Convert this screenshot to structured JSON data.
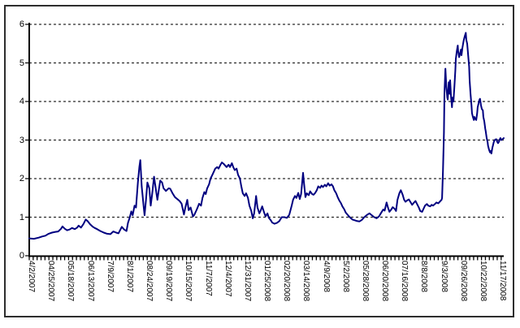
{
  "window": {
    "background_color": "#ffffff",
    "border_color": "#2e2e2e"
  },
  "chart_data": {
    "type": "line",
    "title": "",
    "xlabel": "",
    "ylabel": "",
    "ylim": [
      0,
      6
    ],
    "y_ticks": [
      "0",
      "1",
      "2",
      "3",
      "4",
      "5",
      "6"
    ],
    "x_tick_labels": [
      "4/2/2007",
      "04/25/2007",
      "05/18/2007",
      "06/13/2007",
      "7/9/2007",
      "8/1/2007",
      "08/24/2007",
      "09/19/2007",
      "10/15/2007",
      "11/7/2007",
      "12/4/2007",
      "12/31/2007",
      "01/25/2008",
      "02/20/2008",
      "03/14/2008",
      "4/9/2008",
      "5/2/2008",
      "05/28/2008",
      "06/20/2008",
      "07/16/2008",
      "8/8/2008",
      "9/3/2008",
      "09/26/2008",
      "10/22/2008",
      "11/17/2008"
    ],
    "grid": "horizontal-dashed",
    "legend": "none",
    "axis_color": "#000000",
    "gridline_color": "#2a2a2a",
    "series": [
      {
        "name": "spread-series",
        "color": "#000080",
        "points": [
          [
            0.0,
            0.45
          ],
          [
            0.01,
            0.44
          ],
          [
            0.02,
            0.47
          ],
          [
            0.027,
            0.5
          ],
          [
            0.034,
            0.52
          ],
          [
            0.041,
            0.57
          ],
          [
            0.048,
            0.6
          ],
          [
            0.055,
            0.62
          ],
          [
            0.061,
            0.63
          ],
          [
            0.067,
            0.7
          ],
          [
            0.07,
            0.76
          ],
          [
            0.075,
            0.7
          ],
          [
            0.08,
            0.66
          ],
          [
            0.085,
            0.68
          ],
          [
            0.09,
            0.72
          ],
          [
            0.096,
            0.69
          ],
          [
            0.101,
            0.73
          ],
          [
            0.104,
            0.78
          ],
          [
            0.109,
            0.73
          ],
          [
            0.114,
            0.82
          ],
          [
            0.119,
            0.94
          ],
          [
            0.123,
            0.9
          ],
          [
            0.128,
            0.82
          ],
          [
            0.133,
            0.76
          ],
          [
            0.138,
            0.72
          ],
          [
            0.143,
            0.69
          ],
          [
            0.15,
            0.64
          ],
          [
            0.157,
            0.6
          ],
          [
            0.164,
            0.57
          ],
          [
            0.171,
            0.56
          ],
          [
            0.177,
            0.63
          ],
          [
            0.183,
            0.6
          ],
          [
            0.188,
            0.58
          ],
          [
            0.195,
            0.75
          ],
          [
            0.2,
            0.68
          ],
          [
            0.205,
            0.64
          ],
          [
            0.208,
            0.85
          ],
          [
            0.212,
            1.0
          ],
          [
            0.215,
            1.15
          ],
          [
            0.218,
            1.05
          ],
          [
            0.222,
            1.3
          ],
          [
            0.225,
            1.25
          ],
          [
            0.229,
            1.9
          ],
          [
            0.232,
            2.3
          ],
          [
            0.234,
            2.48
          ],
          [
            0.237,
            1.8
          ],
          [
            0.241,
            1.3
          ],
          [
            0.243,
            1.05
          ],
          [
            0.246,
            1.45
          ],
          [
            0.249,
            1.9
          ],
          [
            0.253,
            1.75
          ],
          [
            0.256,
            1.3
          ],
          [
            0.259,
            1.6
          ],
          [
            0.263,
            2.05
          ],
          [
            0.266,
            1.8
          ],
          [
            0.27,
            1.45
          ],
          [
            0.273,
            1.7
          ],
          [
            0.276,
            1.95
          ],
          [
            0.28,
            1.9
          ],
          [
            0.283,
            1.75
          ],
          [
            0.288,
            1.68
          ],
          [
            0.294,
            1.75
          ],
          [
            0.297,
            1.74
          ],
          [
            0.302,
            1.62
          ],
          [
            0.307,
            1.52
          ],
          [
            0.312,
            1.47
          ],
          [
            0.317,
            1.42
          ],
          [
            0.321,
            1.35
          ],
          [
            0.326,
            1.07
          ],
          [
            0.329,
            1.25
          ],
          [
            0.333,
            1.45
          ],
          [
            0.336,
            1.18
          ],
          [
            0.34,
            1.25
          ],
          [
            0.345,
            1.02
          ],
          [
            0.348,
            1.06
          ],
          [
            0.353,
            1.2
          ],
          [
            0.358,
            1.35
          ],
          [
            0.362,
            1.3
          ],
          [
            0.365,
            1.5
          ],
          [
            0.369,
            1.65
          ],
          [
            0.372,
            1.6
          ],
          [
            0.375,
            1.75
          ],
          [
            0.379,
            1.85
          ],
          [
            0.382,
            2.0
          ],
          [
            0.386,
            2.1
          ],
          [
            0.389,
            2.18
          ],
          [
            0.392,
            2.26
          ],
          [
            0.396,
            2.3
          ],
          [
            0.399,
            2.26
          ],
          [
            0.403,
            2.36
          ],
          [
            0.406,
            2.42
          ],
          [
            0.41,
            2.38
          ],
          [
            0.413,
            2.34
          ],
          [
            0.416,
            2.3
          ],
          [
            0.42,
            2.36
          ],
          [
            0.423,
            2.3
          ],
          [
            0.427,
            2.4
          ],
          [
            0.43,
            2.3
          ],
          [
            0.433,
            2.22
          ],
          [
            0.437,
            2.26
          ],
          [
            0.44,
            2.1
          ],
          [
            0.444,
            2.0
          ],
          [
            0.447,
            1.8
          ],
          [
            0.45,
            1.62
          ],
          [
            0.454,
            1.55
          ],
          [
            0.457,
            1.62
          ],
          [
            0.461,
            1.5
          ],
          [
            0.464,
            1.3
          ],
          [
            0.468,
            1.16
          ],
          [
            0.471,
            0.97
          ],
          [
            0.474,
            1.1
          ],
          [
            0.478,
            1.55
          ],
          [
            0.481,
            1.25
          ],
          [
            0.485,
            1.1
          ],
          [
            0.488,
            1.18
          ],
          [
            0.491,
            1.28
          ],
          [
            0.495,
            1.12
          ],
          [
            0.498,
            1.02
          ],
          [
            0.502,
            1.1
          ],
          [
            0.505,
            0.98
          ],
          [
            0.509,
            0.92
          ],
          [
            0.512,
            0.86
          ],
          [
            0.517,
            0.83
          ],
          [
            0.522,
            0.85
          ],
          [
            0.527,
            0.9
          ],
          [
            0.532,
            1.0
          ],
          [
            0.538,
            1.0
          ],
          [
            0.543,
            0.98
          ],
          [
            0.548,
            1.06
          ],
          [
            0.553,
            1.3
          ],
          [
            0.556,
            1.45
          ],
          [
            0.56,
            1.55
          ],
          [
            0.563,
            1.5
          ],
          [
            0.567,
            1.63
          ],
          [
            0.57,
            1.47
          ],
          [
            0.573,
            1.6
          ],
          [
            0.577,
            2.15
          ],
          [
            0.579,
            1.9
          ],
          [
            0.582,
            1.52
          ],
          [
            0.585,
            1.62
          ],
          [
            0.589,
            1.57
          ],
          [
            0.592,
            1.67
          ],
          [
            0.596,
            1.6
          ],
          [
            0.599,
            1.58
          ],
          [
            0.602,
            1.62
          ],
          [
            0.606,
            1.7
          ],
          [
            0.609,
            1.8
          ],
          [
            0.613,
            1.76
          ],
          [
            0.616,
            1.82
          ],
          [
            0.619,
            1.78
          ],
          [
            0.623,
            1.84
          ],
          [
            0.626,
            1.8
          ],
          [
            0.63,
            1.88
          ],
          [
            0.633,
            1.82
          ],
          [
            0.637,
            1.85
          ],
          [
            0.64,
            1.8
          ],
          [
            0.643,
            1.7
          ],
          [
            0.647,
            1.62
          ],
          [
            0.65,
            1.52
          ],
          [
            0.653,
            1.44
          ],
          [
            0.657,
            1.36
          ],
          [
            0.66,
            1.28
          ],
          [
            0.664,
            1.2
          ],
          [
            0.667,
            1.12
          ],
          [
            0.671,
            1.06
          ],
          [
            0.674,
            1.02
          ],
          [
            0.678,
            0.97
          ],
          [
            0.681,
            0.94
          ],
          [
            0.686,
            0.92
          ],
          [
            0.691,
            0.9
          ],
          [
            0.696,
            0.89
          ],
          [
            0.701,
            0.93
          ],
          [
            0.706,
            1.0
          ],
          [
            0.712,
            1.06
          ],
          [
            0.717,
            1.1
          ],
          [
            0.722,
            1.05
          ],
          [
            0.727,
            1.0
          ],
          [
            0.732,
            0.97
          ],
          [
            0.737,
            1.02
          ],
          [
            0.742,
            1.12
          ],
          [
            0.746,
            1.2
          ],
          [
            0.749,
            1.17
          ],
          [
            0.753,
            1.38
          ],
          [
            0.756,
            1.25
          ],
          [
            0.759,
            1.14
          ],
          [
            0.763,
            1.2
          ],
          [
            0.766,
            1.26
          ],
          [
            0.77,
            1.22
          ],
          [
            0.773,
            1.16
          ],
          [
            0.776,
            1.45
          ],
          [
            0.78,
            1.62
          ],
          [
            0.783,
            1.7
          ],
          [
            0.787,
            1.58
          ],
          [
            0.79,
            1.45
          ],
          [
            0.793,
            1.4
          ],
          [
            0.797,
            1.44
          ],
          [
            0.8,
            1.46
          ],
          [
            0.804,
            1.38
          ],
          [
            0.807,
            1.32
          ],
          [
            0.811,
            1.38
          ],
          [
            0.814,
            1.42
          ],
          [
            0.817,
            1.35
          ],
          [
            0.821,
            1.25
          ],
          [
            0.824,
            1.16
          ],
          [
            0.828,
            1.14
          ],
          [
            0.831,
            1.22
          ],
          [
            0.834,
            1.3
          ],
          [
            0.838,
            1.34
          ],
          [
            0.841,
            1.3
          ],
          [
            0.845,
            1.28
          ],
          [
            0.848,
            1.32
          ],
          [
            0.851,
            1.3
          ],
          [
            0.855,
            1.34
          ],
          [
            0.858,
            1.38
          ],
          [
            0.862,
            1.36
          ],
          [
            0.865,
            1.4
          ],
          [
            0.869,
            1.45
          ],
          [
            0.87,
            1.5
          ],
          [
            0.872,
            2.2
          ],
          [
            0.874,
            3.2
          ],
          [
            0.875,
            4.2
          ],
          [
            0.877,
            4.85
          ],
          [
            0.879,
            4.4
          ],
          [
            0.881,
            4.1
          ],
          [
            0.882,
            4.05
          ],
          [
            0.884,
            4.5
          ],
          [
            0.886,
            4.2
          ],
          [
            0.887,
            4.55
          ],
          [
            0.889,
            4.1
          ],
          [
            0.891,
            3.85
          ],
          [
            0.892,
            4.1
          ],
          [
            0.894,
            4.0
          ],
          [
            0.896,
            4.4
          ],
          [
            0.898,
            4.8
          ],
          [
            0.899,
            5.1
          ],
          [
            0.901,
            5.3
          ],
          [
            0.903,
            5.45
          ],
          [
            0.904,
            5.3
          ],
          [
            0.906,
            5.15
          ],
          [
            0.908,
            5.25
          ],
          [
            0.91,
            5.35
          ],
          [
            0.911,
            5.2
          ],
          [
            0.913,
            5.4
          ],
          [
            0.915,
            5.55
          ],
          [
            0.916,
            5.6
          ],
          [
            0.918,
            5.7
          ],
          [
            0.92,
            5.78
          ],
          [
            0.921,
            5.6
          ],
          [
            0.923,
            5.5
          ],
          [
            0.925,
            5.2
          ],
          [
            0.927,
            4.9
          ],
          [
            0.928,
            4.55
          ],
          [
            0.93,
            4.2
          ],
          [
            0.932,
            3.9
          ],
          [
            0.933,
            3.7
          ],
          [
            0.935,
            3.6
          ],
          [
            0.937,
            3.52
          ],
          [
            0.938,
            3.6
          ],
          [
            0.94,
            3.55
          ],
          [
            0.942,
            3.52
          ],
          [
            0.944,
            3.7
          ],
          [
            0.945,
            3.85
          ],
          [
            0.947,
            3.95
          ],
          [
            0.949,
            4.05
          ],
          [
            0.95,
            4.07
          ],
          [
            0.952,
            3.9
          ],
          [
            0.954,
            3.8
          ],
          [
            0.956,
            3.77
          ],
          [
            0.957,
            3.6
          ],
          [
            0.959,
            3.48
          ],
          [
            0.961,
            3.3
          ],
          [
            0.962,
            3.23
          ],
          [
            0.964,
            3.05
          ],
          [
            0.966,
            2.95
          ],
          [
            0.967,
            2.85
          ],
          [
            0.969,
            2.75
          ],
          [
            0.971,
            2.68
          ],
          [
            0.973,
            2.72
          ],
          [
            0.974,
            2.65
          ],
          [
            0.976,
            2.8
          ],
          [
            0.978,
            2.9
          ],
          [
            0.979,
            2.95
          ],
          [
            0.981,
            3.0
          ],
          [
            0.983,
            3.02
          ],
          [
            0.985,
            3.02
          ],
          [
            0.986,
            2.96
          ],
          [
            0.988,
            2.92
          ],
          [
            0.99,
            2.96
          ],
          [
            0.991,
            3.0
          ],
          [
            0.993,
            3.05
          ],
          [
            0.995,
            3.0
          ],
          [
            0.997,
            3.02
          ],
          [
            1.0,
            3.05
          ]
        ]
      }
    ]
  }
}
